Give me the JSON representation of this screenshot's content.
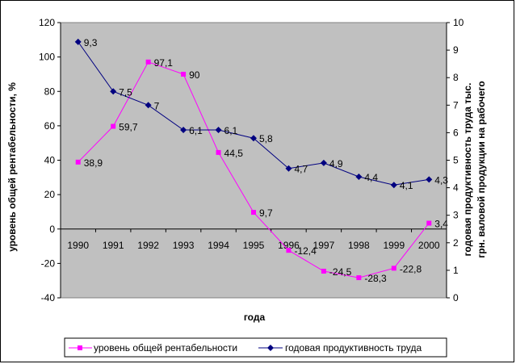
{
  "chart_data": {
    "type": "line",
    "x": [
      "1990",
      "1991",
      "1992",
      "1993",
      "1994",
      "1995",
      "1996",
      "1997",
      "1998",
      "1999",
      "2000"
    ],
    "xlabel": "года",
    "ylabel": "уровень общей рентабельности, %",
    "y2label_line1": "годовая продуктивность труда тыс.",
    "y2label_line2": "грн. валовой продукции на рабочего",
    "ylim": [
      -40,
      120
    ],
    "y2lim": [
      0,
      10
    ],
    "yticks": [
      -40,
      -20,
      0,
      20,
      40,
      60,
      80,
      100,
      120
    ],
    "y2ticks": [
      0,
      1,
      2,
      3,
      4,
      5,
      6,
      7,
      8,
      9,
      10
    ],
    "grid": false,
    "legend_position": "bottom",
    "plot_background": "#c0c0c0",
    "series": [
      {
        "name": "уровень общей рентабельности",
        "axis": "left",
        "color": "#ff00ff",
        "marker": "square",
        "values": [
          38.9,
          59.7,
          97.1,
          90,
          44.5,
          9.7,
          -12.4,
          -24.5,
          -28.3,
          -22.8,
          3.4
        ],
        "labels": [
          "38,9",
          "59,7",
          "97,1",
          "90",
          "44,5",
          "9,7",
          "-12,4",
          "-24,5",
          "-28,3",
          "-22,8",
          "3,4"
        ]
      },
      {
        "name": "годовая продуктивность труда",
        "axis": "right",
        "color": "#000080",
        "marker": "diamond",
        "values": [
          9.3,
          7.5,
          7,
          6.1,
          6.1,
          5.8,
          4.7,
          4.9,
          4.4,
          4.1,
          4.3
        ],
        "labels": [
          "9,3",
          "7,5",
          "7",
          "6,1",
          "6,1",
          "5,8",
          "4,7",
          "4,9",
          "4,4",
          "4,1",
          "4,3"
        ]
      }
    ]
  }
}
